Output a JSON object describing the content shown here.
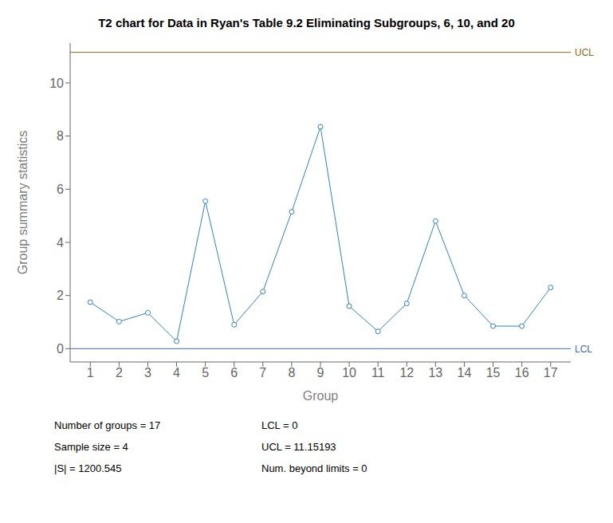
{
  "chart_data": {
    "type": "line",
    "title": "T2 chart for Data in Ryan's Table 9.2 Eliminating Subgroups, 6, 10, and 20",
    "xlabel": "Group",
    "ylabel": "Group summary statistics",
    "x": [
      1,
      2,
      3,
      4,
      5,
      6,
      7,
      8,
      9,
      10,
      11,
      12,
      13,
      14,
      15,
      16,
      17
    ],
    "values": [
      1.75,
      1.02,
      1.35,
      0.28,
      5.55,
      0.9,
      2.15,
      5.15,
      8.35,
      1.6,
      0.65,
      1.7,
      4.8,
      2.0,
      0.85,
      0.85,
      2.3
    ],
    "xlim": [
      0.3,
      17.7
    ],
    "xticks": [
      1,
      2,
      3,
      4,
      5,
      6,
      7,
      8,
      9,
      10,
      11,
      12,
      13,
      14,
      15,
      16,
      17
    ],
    "ylim": [
      -0.5,
      11.5
    ],
    "yticks": [
      0,
      2,
      4,
      6,
      8,
      10
    ],
    "grid": false,
    "marker": "circle",
    "limits": [
      {
        "name": "UCL",
        "value": 11.15193,
        "color": "#8B6914"
      },
      {
        "name": "LCL",
        "value": 0,
        "color": "#4169AA"
      }
    ],
    "annotations": [
      "Number of groups = 17",
      "Sample size = 4",
      "|S| = 1200.545",
      "LCL = 0",
      "UCL = 11.15193",
      "Num. beyond limits = 0"
    ]
  }
}
